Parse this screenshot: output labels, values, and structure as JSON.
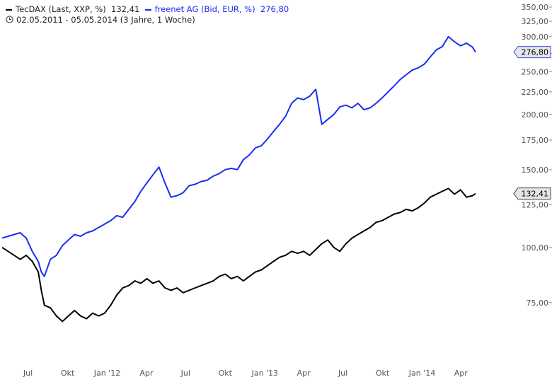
{
  "legend": {
    "series1_label": "TecDAX (Last, XXP, %)",
    "series1_value": "132,41",
    "series2_label": "freenet AG (Bid, EUR, %)",
    "series2_value": "276,80",
    "period": "02.05.2011 - 05.05.2014 (3 Jahre, 1 Woche)"
  },
  "chart_data": {
    "type": "line",
    "x_scale": "time (monthly ticks)",
    "y_scale": "log",
    "ylim": [
      55,
      350
    ],
    "y_ticks": [
      {
        "value": 75,
        "label": "75,00"
      },
      {
        "value": 100,
        "label": "100,00"
      },
      {
        "value": 125,
        "label": "125,00"
      },
      {
        "value": 150,
        "label": "150,00"
      },
      {
        "value": 175,
        "label": "175,00"
      },
      {
        "value": 200,
        "label": "200,00"
      },
      {
        "value": 225,
        "label": "225,00"
      },
      {
        "value": 250,
        "label": "250,00"
      },
      {
        "value": 275,
        "label": "275,00"
      },
      {
        "value": 300,
        "label": "300,00"
      },
      {
        "value": 325,
        "label": "325,00"
      },
      {
        "value": 350,
        "label": "350,00"
      }
    ],
    "x_ticks": [
      {
        "date": "2011-07-01",
        "label": "Jul"
      },
      {
        "date": "2011-10-01",
        "label": "Okt"
      },
      {
        "date": "2012-01-01",
        "label": "Jan '12"
      },
      {
        "date": "2012-04-01",
        "label": "Apr"
      },
      {
        "date": "2012-07-01",
        "label": "Jul"
      },
      {
        "date": "2012-10-01",
        "label": "Okt"
      },
      {
        "date": "2013-01-01",
        "label": "Jan '13"
      },
      {
        "date": "2013-04-01",
        "label": "Apr"
      },
      {
        "date": "2013-07-01",
        "label": "Jul"
      },
      {
        "date": "2013-10-01",
        "label": "Okt"
      },
      {
        "date": "2014-01-01",
        "label": "Jan '14"
      },
      {
        "date": "2014-04-01",
        "label": "Apr"
      }
    ],
    "series": [
      {
        "name": "TecDAX (Last, XXP, %)",
        "color": "#000000",
        "last_label": "132,41",
        "points": [
          [
            "2011-05-02",
            100
          ],
          [
            "2011-05-16",
            98
          ],
          [
            "2011-05-30",
            96
          ],
          [
            "2011-06-13",
            94
          ],
          [
            "2011-06-27",
            96
          ],
          [
            "2011-07-11",
            93
          ],
          [
            "2011-07-25",
            88
          ],
          [
            "2011-08-01",
            80
          ],
          [
            "2011-08-08",
            74
          ],
          [
            "2011-08-22",
            73
          ],
          [
            "2011-09-05",
            70
          ],
          [
            "2011-09-19",
            68
          ],
          [
            "2011-10-03",
            70
          ],
          [
            "2011-10-17",
            72
          ],
          [
            "2011-10-31",
            70
          ],
          [
            "2011-11-14",
            69
          ],
          [
            "2011-11-28",
            71
          ],
          [
            "2011-12-12",
            70
          ],
          [
            "2011-12-26",
            71
          ],
          [
            "2012-01-09",
            74
          ],
          [
            "2012-01-23",
            78
          ],
          [
            "2012-02-06",
            81
          ],
          [
            "2012-02-20",
            82
          ],
          [
            "2012-03-05",
            84
          ],
          [
            "2012-03-19",
            83
          ],
          [
            "2012-04-02",
            85
          ],
          [
            "2012-04-16",
            83
          ],
          [
            "2012-04-30",
            84
          ],
          [
            "2012-05-14",
            81
          ],
          [
            "2012-05-28",
            80
          ],
          [
            "2012-06-11",
            81
          ],
          [
            "2012-06-25",
            79
          ],
          [
            "2012-07-09",
            80
          ],
          [
            "2012-07-23",
            81
          ],
          [
            "2012-08-06",
            82
          ],
          [
            "2012-08-20",
            83
          ],
          [
            "2012-09-03",
            84
          ],
          [
            "2012-09-17",
            86
          ],
          [
            "2012-10-01",
            87
          ],
          [
            "2012-10-15",
            85
          ],
          [
            "2012-10-29",
            86
          ],
          [
            "2012-11-12",
            84
          ],
          [
            "2012-11-26",
            86
          ],
          [
            "2012-12-10",
            88
          ],
          [
            "2012-12-24",
            89
          ],
          [
            "2013-01-07",
            91
          ],
          [
            "2013-01-21",
            93
          ],
          [
            "2013-02-04",
            95
          ],
          [
            "2013-02-18",
            96
          ],
          [
            "2013-03-04",
            98
          ],
          [
            "2013-03-18",
            97
          ],
          [
            "2013-04-01",
            98
          ],
          [
            "2013-04-15",
            96
          ],
          [
            "2013-04-29",
            99
          ],
          [
            "2013-05-13",
            102
          ],
          [
            "2013-05-27",
            104
          ],
          [
            "2013-06-10",
            100
          ],
          [
            "2013-06-24",
            98
          ],
          [
            "2013-07-08",
            102
          ],
          [
            "2013-07-22",
            105
          ],
          [
            "2013-08-05",
            107
          ],
          [
            "2013-08-19",
            109
          ],
          [
            "2013-09-02",
            111
          ],
          [
            "2013-09-16",
            114
          ],
          [
            "2013-09-30",
            115
          ],
          [
            "2013-10-14",
            117
          ],
          [
            "2013-10-28",
            119
          ],
          [
            "2013-11-11",
            120
          ],
          [
            "2013-11-25",
            122
          ],
          [
            "2013-12-09",
            121
          ],
          [
            "2013-12-23",
            123
          ],
          [
            "2014-01-06",
            126
          ],
          [
            "2014-01-20",
            130
          ],
          [
            "2014-02-03",
            132
          ],
          [
            "2014-02-17",
            134
          ],
          [
            "2014-03-03",
            136
          ],
          [
            "2014-03-17",
            132
          ],
          [
            "2014-03-31",
            135
          ],
          [
            "2014-04-14",
            130
          ],
          [
            "2014-04-28",
            131
          ],
          [
            "2014-05-05",
            132.41
          ]
        ]
      },
      {
        "name": "freenet AG (Bid, EUR, %)",
        "color": "#1a2ef0",
        "last_label": "276,80",
        "points": [
          [
            "2011-05-02",
            105
          ],
          [
            "2011-05-16",
            106
          ],
          [
            "2011-05-30",
            107
          ],
          [
            "2011-06-13",
            108
          ],
          [
            "2011-06-27",
            105
          ],
          [
            "2011-07-11",
            98
          ],
          [
            "2011-07-25",
            93
          ],
          [
            "2011-08-01",
            88
          ],
          [
            "2011-08-08",
            86
          ],
          [
            "2011-08-22",
            94
          ],
          [
            "2011-09-05",
            96
          ],
          [
            "2011-09-19",
            101
          ],
          [
            "2011-10-03",
            104
          ],
          [
            "2011-10-17",
            107
          ],
          [
            "2011-10-31",
            106
          ],
          [
            "2011-11-14",
            108
          ],
          [
            "2011-11-28",
            109
          ],
          [
            "2011-12-12",
            111
          ],
          [
            "2011-12-26",
            113
          ],
          [
            "2012-01-09",
            115
          ],
          [
            "2012-01-23",
            118
          ],
          [
            "2012-02-06",
            117
          ],
          [
            "2012-02-20",
            122
          ],
          [
            "2012-03-05",
            127
          ],
          [
            "2012-03-19",
            134
          ],
          [
            "2012-04-02",
            140
          ],
          [
            "2012-04-16",
            146
          ],
          [
            "2012-04-30",
            152
          ],
          [
            "2012-05-14",
            140
          ],
          [
            "2012-05-28",
            130
          ],
          [
            "2012-06-11",
            131
          ],
          [
            "2012-06-25",
            133
          ],
          [
            "2012-07-09",
            138
          ],
          [
            "2012-07-23",
            139
          ],
          [
            "2012-08-06",
            141
          ],
          [
            "2012-08-20",
            142
          ],
          [
            "2012-09-03",
            145
          ],
          [
            "2012-09-17",
            147
          ],
          [
            "2012-10-01",
            150
          ],
          [
            "2012-10-15",
            151
          ],
          [
            "2012-10-29",
            150
          ],
          [
            "2012-11-12",
            158
          ],
          [
            "2012-11-26",
            162
          ],
          [
            "2012-12-10",
            168
          ],
          [
            "2012-12-24",
            170
          ],
          [
            "2013-01-07",
            176
          ],
          [
            "2013-01-21",
            183
          ],
          [
            "2013-02-04",
            190
          ],
          [
            "2013-02-18",
            198
          ],
          [
            "2013-03-04",
            212
          ],
          [
            "2013-03-18",
            218
          ],
          [
            "2013-04-01",
            216
          ],
          [
            "2013-04-15",
            220
          ],
          [
            "2013-04-29",
            228
          ],
          [
            "2013-05-13",
            190
          ],
          [
            "2013-05-27",
            195
          ],
          [
            "2013-06-10",
            200
          ],
          [
            "2013-06-24",
            208
          ],
          [
            "2013-07-08",
            210
          ],
          [
            "2013-07-22",
            207
          ],
          [
            "2013-08-05",
            212
          ],
          [
            "2013-08-19",
            205
          ],
          [
            "2013-09-02",
            207
          ],
          [
            "2013-09-16",
            212
          ],
          [
            "2013-09-30",
            218
          ],
          [
            "2013-10-14",
            225
          ],
          [
            "2013-10-28",
            232
          ],
          [
            "2013-11-11",
            240
          ],
          [
            "2013-11-25",
            246
          ],
          [
            "2013-12-09",
            252
          ],
          [
            "2013-12-23",
            255
          ],
          [
            "2014-01-06",
            260
          ],
          [
            "2014-01-20",
            270
          ],
          [
            "2014-02-03",
            280
          ],
          [
            "2014-02-17",
            285
          ],
          [
            "2014-03-03",
            300
          ],
          [
            "2014-03-17",
            292
          ],
          [
            "2014-03-31",
            286
          ],
          [
            "2014-04-14",
            290
          ],
          [
            "2014-04-28",
            284
          ],
          [
            "2014-05-05",
            276.8
          ]
        ]
      }
    ]
  }
}
